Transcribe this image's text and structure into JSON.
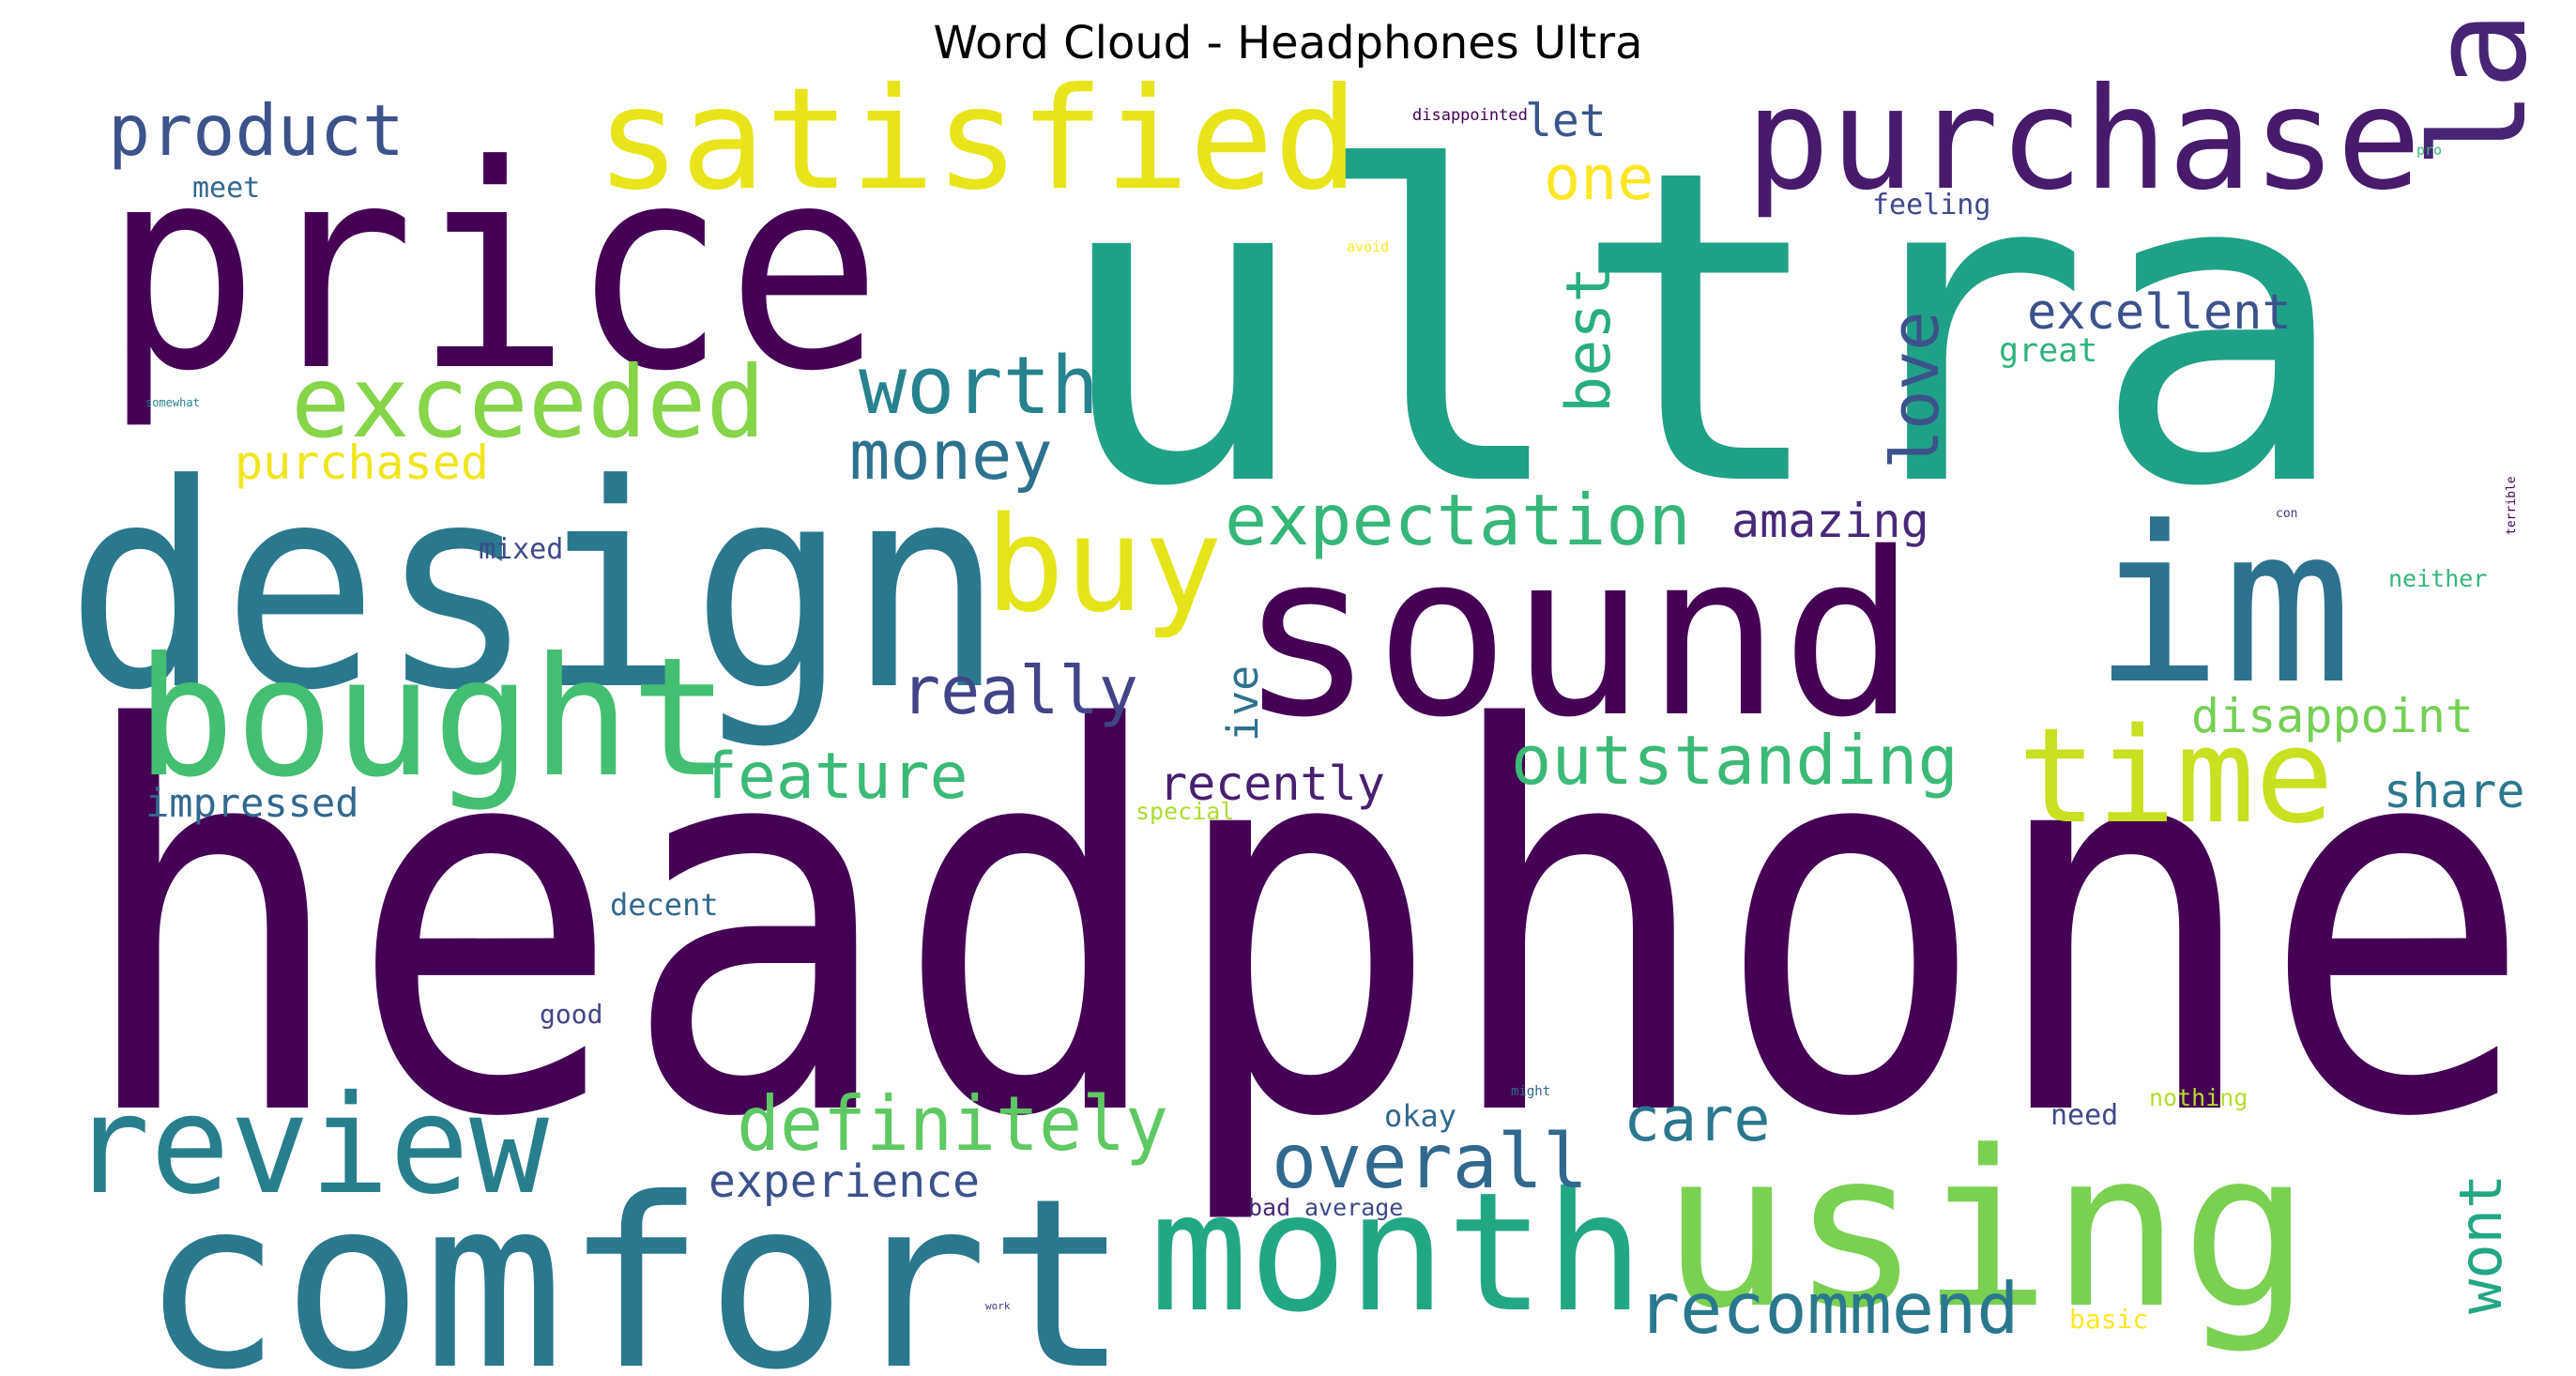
{
  "chart_data": {
    "type": "wordcloud",
    "title": "Word Cloud - Headphones Ultra",
    "palette": [
      "#440154",
      "#482878",
      "#3e4989",
      "#31688e",
      "#26828e",
      "#1f9e89",
      "#35b779",
      "#6ece58",
      "#b5de2b",
      "#fde725"
    ],
    "words": [
      {
        "text": "headphone",
        "color": "#440154",
        "vertical": false
      },
      {
        "text": "ultra",
        "color": "#1fa187",
        "vertical": false
      },
      {
        "text": "price",
        "color": "#440154",
        "vertical": false
      },
      {
        "text": "design",
        "color": "#2a788e",
        "vertical": false
      },
      {
        "text": "sound",
        "color": "#440154",
        "vertical": false
      },
      {
        "text": "comfort",
        "color": "#2a788e",
        "vertical": false
      },
      {
        "text": "using",
        "color": "#7ad151",
        "vertical": false
      },
      {
        "text": "satisfied",
        "color": "#e8e419",
        "vertical": false
      },
      {
        "text": "purchase",
        "color": "#481a6c",
        "vertical": false
      },
      {
        "text": "bought",
        "color": "#43bf71",
        "vertical": false
      },
      {
        "text": "im",
        "color": "#2c728e",
        "vertical": false
      },
      {
        "text": "last",
        "color": "#482475",
        "vertical": true
      },
      {
        "text": "month",
        "color": "#22a785",
        "vertical": false
      },
      {
        "text": "review",
        "color": "#277f8e",
        "vertical": false
      },
      {
        "text": "exceeded",
        "color": "#86d549",
        "vertical": false
      },
      {
        "text": "buy",
        "color": "#e5e419",
        "vertical": false
      },
      {
        "text": "time",
        "color": "#c8e020",
        "vertical": false
      },
      {
        "text": "product",
        "color": "#3b528b",
        "vertical": false
      },
      {
        "text": "worth",
        "color": "#26828e",
        "vertical": false
      },
      {
        "text": "money",
        "color": "#2c728e",
        "vertical": false
      },
      {
        "text": "definitely",
        "color": "#5ec962",
        "vertical": false
      },
      {
        "text": "overall",
        "color": "#31688e",
        "vertical": false
      },
      {
        "text": "recommend",
        "color": "#2a788e",
        "vertical": false
      },
      {
        "text": "expectation",
        "color": "#35b779",
        "vertical": false
      },
      {
        "text": "outstanding",
        "color": "#3aba76",
        "vertical": false
      },
      {
        "text": "really",
        "color": "#414487",
        "vertical": false
      },
      {
        "text": "feature",
        "color": "#3aba76",
        "vertical": false
      },
      {
        "text": "love",
        "color": "#3b528b",
        "vertical": true
      },
      {
        "text": "best",
        "color": "#29af7f",
        "vertical": true
      },
      {
        "text": "one",
        "color": "#fde725",
        "vertical": false
      },
      {
        "text": "let",
        "color": "#39568c",
        "vertical": false
      },
      {
        "text": "care",
        "color": "#2a788e",
        "vertical": false
      },
      {
        "text": "wont",
        "color": "#22a785",
        "vertical": true
      },
      {
        "text": "excellent",
        "color": "#3b528b",
        "vertical": false
      },
      {
        "text": "disappoint",
        "color": "#75d054",
        "vertical": false
      },
      {
        "text": "share",
        "color": "#2a788e",
        "vertical": false
      },
      {
        "text": "amazing",
        "color": "#482878",
        "vertical": false
      },
      {
        "text": "recently",
        "color": "#481f70",
        "vertical": false
      },
      {
        "text": "experience",
        "color": "#3b528b",
        "vertical": false
      },
      {
        "text": "purchased",
        "color": "#f1e51d",
        "vertical": false
      },
      {
        "text": "impressed",
        "color": "#31688e",
        "vertical": false
      },
      {
        "text": "ive",
        "color": "#2c728e",
        "vertical": true
      },
      {
        "text": "great",
        "color": "#2fb47c",
        "vertical": false
      },
      {
        "text": "feeling",
        "color": "#3e4989",
        "vertical": false
      },
      {
        "text": "meet",
        "color": "#31688e",
        "vertical": false
      },
      {
        "text": "mixed",
        "color": "#3e4989",
        "vertical": false
      },
      {
        "text": "decent",
        "color": "#31688e",
        "vertical": false
      },
      {
        "text": "okay",
        "color": "#31688e",
        "vertical": false
      },
      {
        "text": "need",
        "color": "#3e4989",
        "vertical": false
      },
      {
        "text": "nothing",
        "color": "#b5de2b",
        "vertical": false
      },
      {
        "text": "neither",
        "color": "#35b779",
        "vertical": false
      },
      {
        "text": "good",
        "color": "#414487",
        "vertical": false
      },
      {
        "text": "special",
        "color": "#addc30",
        "vertical": false
      },
      {
        "text": "basic",
        "color": "#fde725",
        "vertical": false
      },
      {
        "text": "bad",
        "color": "#482878",
        "vertical": false
      },
      {
        "text": "average",
        "color": "#3e4989",
        "vertical": false
      },
      {
        "text": "disappointed",
        "color": "#440154",
        "vertical": false
      },
      {
        "text": "pro",
        "color": "#3aba76",
        "vertical": false
      },
      {
        "text": "avoid",
        "color": "#fde725",
        "vertical": false
      },
      {
        "text": "somewhat",
        "color": "#26828e",
        "vertical": false
      },
      {
        "text": "con",
        "color": "#443983",
        "vertical": false
      },
      {
        "text": "terrible",
        "color": "#440154",
        "vertical": true
      },
      {
        "text": "might",
        "color": "#31688e",
        "vertical": false
      },
      {
        "text": "work",
        "color": "#443983",
        "vertical": false
      }
    ]
  }
}
